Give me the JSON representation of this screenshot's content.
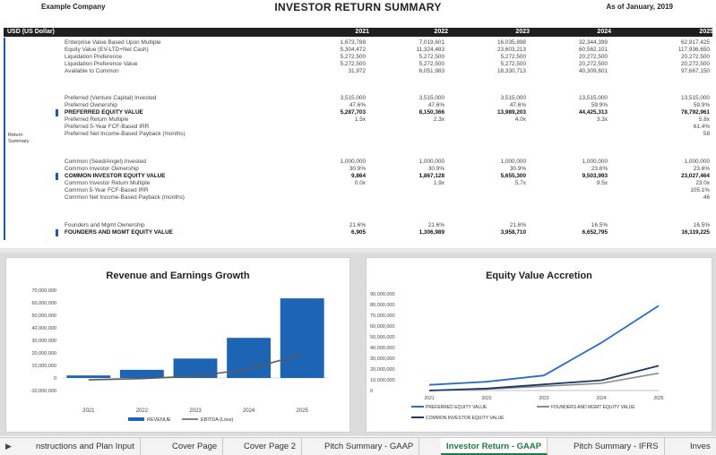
{
  "header": {
    "company": "Example Company",
    "title": "INVESTOR RETURN SUMMARY",
    "as_of": "As of January, 2019"
  },
  "table": {
    "unit_label": "USD (US Dollar)",
    "years": [
      "2021",
      "2022",
      "2023",
      "2024",
      "2025"
    ],
    "section_label_line1": "Return",
    "section_label_line2": "Summary",
    "rows": [
      {
        "label": "Enterprise Value Based Upon Multiple",
        "values": [
          "1,673,788",
          "7,019,601",
          "16,035,898",
          "32,344,399",
          "62,917,425"
        ],
        "bold": false
      },
      {
        "label": "Equity Value (EV-LTD+Net Cash)",
        "values": [
          "5,304,472",
          "11,324,483",
          "23,603,213",
          "60,562,101",
          "117,936,650"
        ],
        "bold": false
      },
      {
        "label": "Liquidation Preference",
        "values": [
          "5,272,500",
          "5,272,500",
          "5,272,500",
          "20,272,500",
          "20,272,500"
        ],
        "bold": false
      },
      {
        "label": "Liquidation Preference Value",
        "values": [
          "5,272,500",
          "5,272,500",
          "5,272,500",
          "20,272,500",
          "20,272,500"
        ],
        "bold": false
      },
      {
        "label": "Available to Common",
        "values": [
          "31,972",
          "6,051,983",
          "18,330,713",
          "40,309,601",
          "97,667,150"
        ],
        "bold": false
      },
      {
        "label": "Preferred (Venture Capital) Invested",
        "values": [
          "3,515,000",
          "3,515,000",
          "3,515,000",
          "13,515,000",
          "13,515,000"
        ],
        "bold": false
      },
      {
        "label": "Preferred Ownership",
        "values": [
          "47.6%",
          "47.6%",
          "47.6%",
          "59.9%",
          "59.9%"
        ],
        "bold": false
      },
      {
        "label": "PREFERRED EQUITY VALUE",
        "values": [
          "5,287,703",
          "8,150,366",
          "13,989,203",
          "44,425,313",
          "78,792,961"
        ],
        "bold": true
      },
      {
        "label": "Preferred Return Multiple",
        "values": [
          "1.5x",
          "2.3x",
          "4.0x",
          "3.3x",
          "5.8x"
        ],
        "bold": false
      },
      {
        "label": "Preferred 5-Year FCF-Based IRR",
        "values": [
          "",
          "",
          "",
          "",
          "61.4%"
        ],
        "bold": false
      },
      {
        "label": "Preferred Net Income-Based Payback (months)",
        "values": [
          "",
          "",
          "",
          "",
          "58"
        ],
        "bold": false
      },
      {
        "label": "Common (Seed/Angel) Invested",
        "values": [
          "1,000,000",
          "1,000,000",
          "1,000,000",
          "1,000,000",
          "1,000,000"
        ],
        "bold": false
      },
      {
        "label": "Common Investor Ownership",
        "values": [
          "30.9%",
          "30.9%",
          "30.9%",
          "23.6%",
          "23.6%"
        ],
        "bold": false
      },
      {
        "label": "COMMON INVESTOR EQUITY VALUE",
        "values": [
          "9,864",
          "1,867,128",
          "5,655,300",
          "9,503,993",
          "23,027,464"
        ],
        "bold": true
      },
      {
        "label": "Common Investor Return Multiple",
        "values": [
          "0.0x",
          "1.9x",
          "5.7x",
          "9.5x",
          "23.0x"
        ],
        "bold": false
      },
      {
        "label": "Common 5-Year FCF-Based IRR",
        "values": [
          "",
          "",
          "",
          "",
          "105.1%"
        ],
        "bold": false
      },
      {
        "label": "Common Net Income-Based Payback (months)",
        "values": [
          "",
          "",
          "",
          "",
          "46"
        ],
        "bold": false
      },
      {
        "label": "Founders and Mgmt Ownership",
        "values": [
          "21.6%",
          "21.6%",
          "21.6%",
          "16.5%",
          "16.5%"
        ],
        "bold": false
      },
      {
        "label": "FOUNDERS AND MGMT EQUITY VALUE",
        "values": [
          "6,905",
          "1,306,989",
          "3,958,710",
          "6,652,795",
          "16,119,225"
        ],
        "bold": true
      }
    ]
  },
  "colors": {
    "accent": "#1a5aa8",
    "bar": "#1e64b4",
    "ebitda": "#5a5a5a",
    "header_bg": "#1f1f1f",
    "active_tab": "#1e7b45"
  },
  "chart_data": [
    {
      "type": "bar",
      "title": "Revenue and Earnings Growth",
      "categories": [
        "2021",
        "2022",
        "2023",
        "2024",
        "2025"
      ],
      "yticks": [
        "70,000,000",
        "60,000,000",
        "50,000,000",
        "40,000,000",
        "30,000,000",
        "20,000,000",
        "10,000,000",
        "0",
        "-10,000,000"
      ],
      "ylim": [
        -10000000,
        70000000
      ],
      "series": [
        {
          "name": "REVENUE",
          "kind": "bar",
          "values": [
            2000000,
            6500000,
            15500000,
            32000000,
            63500000
          ]
        },
        {
          "name": "EBITDA (Loss)",
          "kind": "line",
          "values": [
            -1500000,
            -500000,
            1500000,
            7000000,
            19000000
          ]
        }
      ],
      "legend": "bottom"
    },
    {
      "type": "line",
      "title": "Equity Value Accretion",
      "categories": [
        "2021",
        "2022",
        "2023",
        "2024",
        "2025"
      ],
      "yticks": [
        "90,000,000",
        "80,000,000",
        "70,000,000",
        "60,000,000",
        "50,000,000",
        "40,000,000",
        "30,000,000",
        "20,000,000",
        "10,000,000",
        "0"
      ],
      "ylim": [
        0,
        90000000
      ],
      "series": [
        {
          "name": "PREFERRED EQUITY VALUE",
          "values": [
            5287703,
            8150366,
            13989203,
            44425313,
            78792961
          ]
        },
        {
          "name": "FOUNDERS AND MGMT EQUITY VALUE",
          "values": [
            6905,
            1306989,
            3958710,
            6652795,
            16119225
          ]
        },
        {
          "name": "COMMON INVESTOR EQUITY VALUE",
          "values": [
            9864,
            1867128,
            5655300,
            9503993,
            23027464
          ]
        }
      ],
      "legend": "bottom"
    }
  ],
  "tabs": {
    "nav_arrow": "▶",
    "items": [
      {
        "label": "nstructions and Plan Input",
        "active": false
      },
      {
        "label": "Cover Page",
        "active": false
      },
      {
        "label": "Cover Page 2",
        "active": false
      },
      {
        "label": "Pitch Summary - GAAP",
        "active": false
      },
      {
        "label": "Investor Return - GAAP",
        "active": true
      },
      {
        "label": "Pitch Summary - IFRS",
        "active": false
      },
      {
        "label": "Inves",
        "active": false
      }
    ]
  }
}
